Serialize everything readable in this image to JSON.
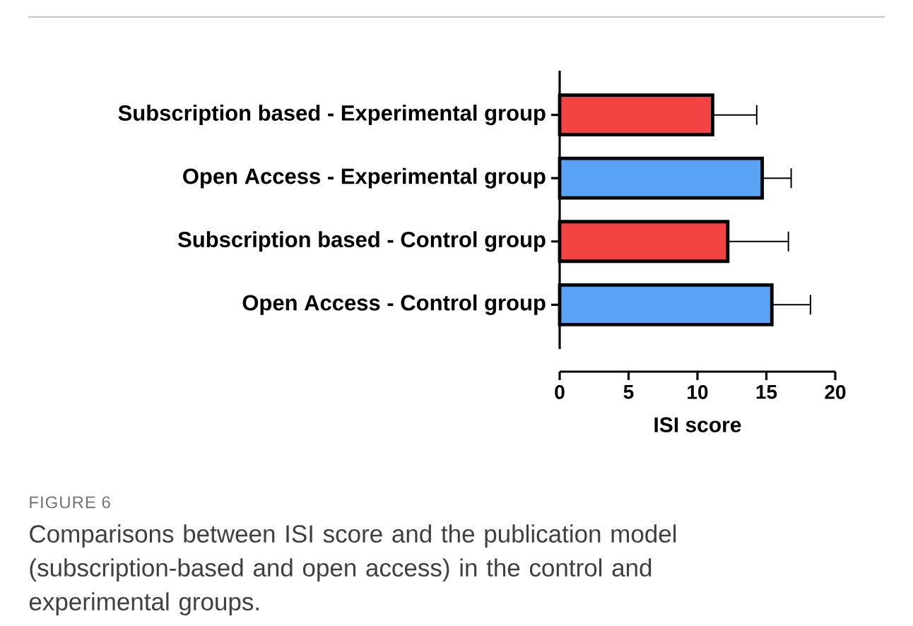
{
  "chart_data": {
    "type": "bar",
    "orientation": "horizontal",
    "xlabel": "ISI score",
    "categories": [
      "Subscription based - Experimental group",
      "Open Access - Experimental group",
      "Subscription based - Control group",
      "Open Access - Control group"
    ],
    "values": [
      11.1,
      14.7,
      12.2,
      15.4
    ],
    "errors": [
      [
        11.1,
        14.3
      ],
      [
        14.7,
        16.8
      ],
      [
        12.2,
        16.6
      ],
      [
        15.4,
        18.2
      ]
    ],
    "colors": [
      "#f44343",
      "#5aa2f6",
      "#f44343",
      "#5aa2f6"
    ],
    "xlim": [
      0,
      20
    ],
    "xticks": [
      0,
      5,
      10,
      15,
      20
    ],
    "grid": false,
    "annotations": [
      "FIGURE 6",
      "Comparisons between ISI score and the publication model (subscription-based and open access) in the control and experimental groups."
    ]
  }
}
